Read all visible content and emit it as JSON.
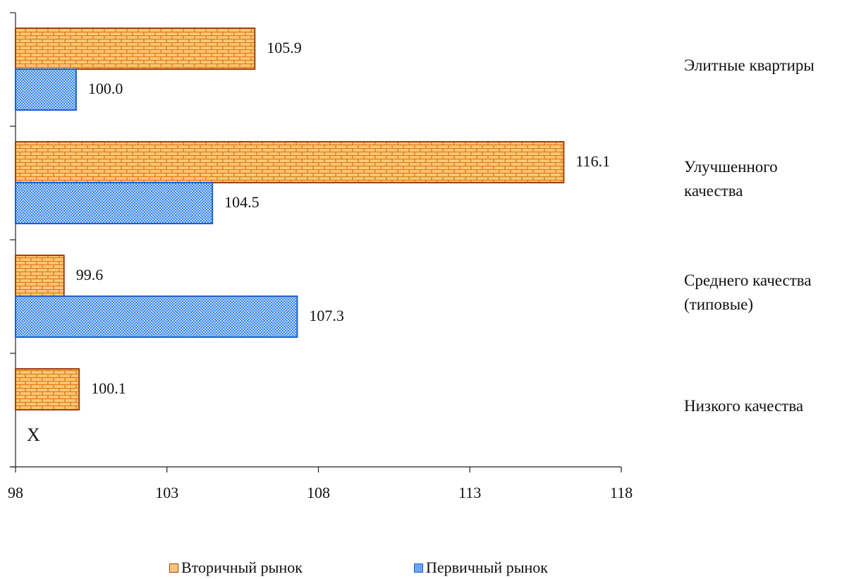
{
  "chart_data": {
    "type": "bar",
    "orientation": "horizontal",
    "categories": [
      "Элитные квартиры",
      "Улучшенного\nкачества",
      "Среднего качества\n(типовые)",
      "Низкого качества"
    ],
    "series": [
      {
        "name": "Вторичный рынок",
        "values": [
          105.9,
          116.1,
          99.6,
          100.1
        ],
        "color": "#f5a623",
        "border": "#a0410a"
      },
      {
        "name": "Первичный рынок",
        "values": [
          100.0,
          104.5,
          107.3,
          null
        ],
        "color": "#3b82f6",
        "border": "#1f5fd0"
      }
    ],
    "missing_marker": "X",
    "xlim": [
      98,
      118
    ],
    "xticks": [
      "98",
      "103",
      "108",
      "113",
      "118"
    ],
    "legend_position": "bottom"
  }
}
